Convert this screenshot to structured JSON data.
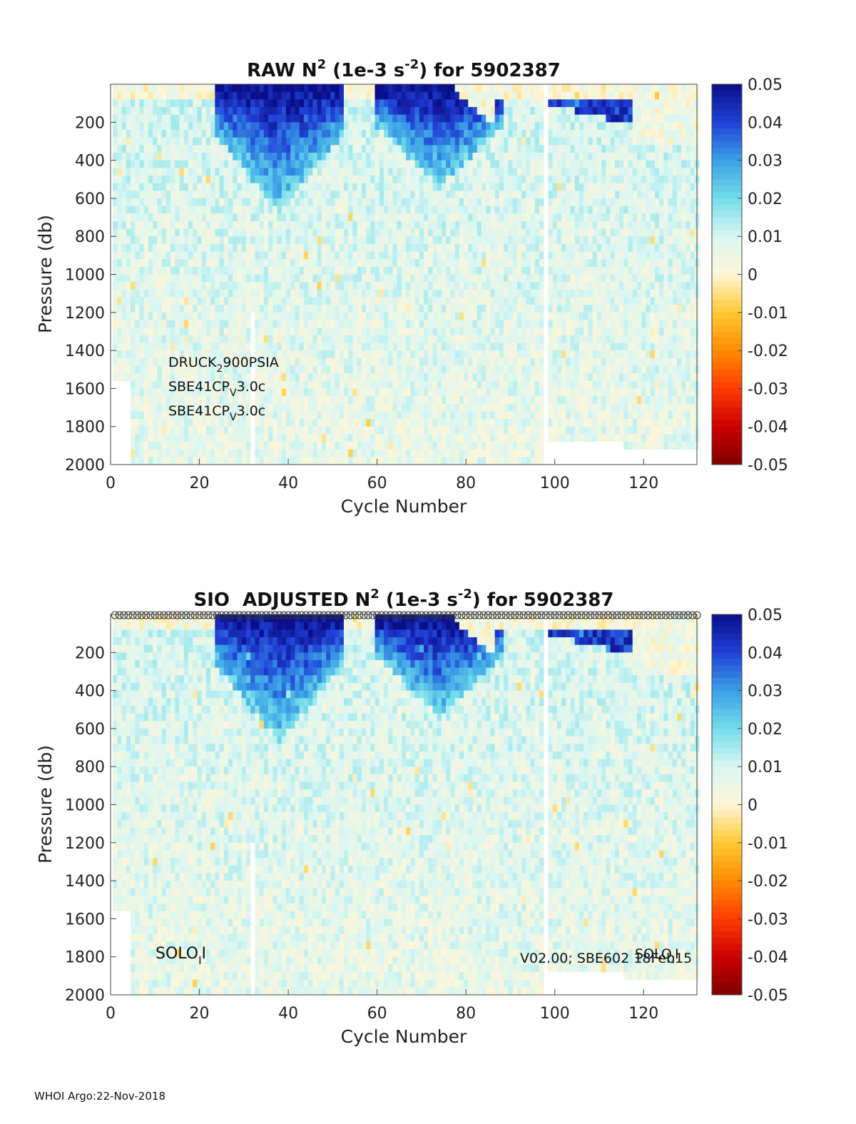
{
  "footer": "WHOI Argo:22-Nov-2018",
  "chart_data": [
    {
      "type": "heatmap",
      "title": {
        "pre": "RAW N",
        "sup1": "2",
        "mid": " (1e-3 s",
        "sup2": "-2",
        "post": ") for 5902387"
      },
      "xlabel": "Cycle Number",
      "ylabel": "Pressure (db)",
      "xlim": [
        0,
        132
      ],
      "ylim": [
        2000,
        0
      ],
      "x_ticks": [
        0,
        20,
        40,
        60,
        80,
        100,
        120
      ],
      "y_ticks": [
        200,
        400,
        600,
        800,
        1000,
        1200,
        1400,
        1600,
        1800,
        2000
      ],
      "colorbar": {
        "range": [
          -0.05,
          0.05
        ],
        "ticks": [
          0.05,
          0.04,
          0.03,
          0.02,
          0.01,
          0,
          -0.01,
          -0.02,
          -0.03,
          -0.04,
          -0.05
        ],
        "tick_labels": [
          "0.05",
          "0.04",
          "0.03",
          "0.02",
          "0.01",
          "0",
          "-0.01",
          "-0.02",
          "-0.03",
          "-0.04",
          "-0.05"
        ],
        "colormap": [
          "#7f0000",
          "#cc0000",
          "#ff3c00",
          "#ff8c00",
          "#ffc933",
          "#fff6d8",
          "#d9f6f2",
          "#72ddea",
          "#3aa0e6",
          "#2040d6",
          "#0a0e88"
        ]
      },
      "annotations": [
        {
          "base": "DRUCK",
          "sub": "2",
          "rest": "900PSIA"
        },
        {
          "base": "SBE41CP",
          "sub": "V",
          "rest": "3.0c"
        },
        {
          "base": "SBE41CP",
          "sub": "V",
          "rest": "3.0c"
        }
      ],
      "field_description": {
        "surface_strong_stratification_cycles": [
          [
            24,
            52
          ],
          [
            60,
            86
          ],
          [
            98,
            118
          ]
        ],
        "typical_deep_value": 0.01,
        "peak_value": 0.05,
        "gap_cycles": [
          32,
          98
        ]
      }
    },
    {
      "type": "heatmap",
      "title": {
        "pre": "SIO  ADJUSTED N",
        "sup1": "2",
        "mid": " (1e-3 s",
        "sup2": "-2",
        "post": ") for 5902387"
      },
      "xlabel": "Cycle Number",
      "ylabel": "Pressure (db)",
      "xlim": [
        0,
        132
      ],
      "ylim": [
        2000,
        0
      ],
      "x_ticks": [
        0,
        20,
        40,
        60,
        80,
        100,
        120
      ],
      "y_ticks": [
        200,
        400,
        600,
        800,
        1000,
        1200,
        1400,
        1600,
        1800,
        2000
      ],
      "colorbar": {
        "range": [
          -0.05,
          0.05
        ],
        "ticks": [
          0.05,
          0.04,
          0.03,
          0.02,
          0.01,
          0,
          -0.01,
          -0.02,
          -0.03,
          -0.04,
          -0.05
        ],
        "tick_labels": [
          "0.05",
          "0.04",
          "0.03",
          "0.02",
          "0.01",
          "0",
          "-0.01",
          "-0.02",
          "-0.03",
          "-0.04",
          "-0.05"
        ],
        "colormap": [
          "#7f0000",
          "#cc0000",
          "#ff3c00",
          "#ff8c00",
          "#ffc933",
          "#fff6d8",
          "#d9f6f2",
          "#72ddea",
          "#3aa0e6",
          "#2040d6",
          "#0a0e88"
        ]
      },
      "annotations": [
        {
          "base": "SOLO",
          "sub": "I",
          "rest": "I"
        },
        {
          "base": "SOLO",
          "sub": "I",
          "rest": "I"
        },
        {
          "base": "V02.00; SBE602 18Feb15",
          "sub": "",
          "rest": ""
        }
      ],
      "markers": {
        "shape": "circle",
        "cycle_start": 1,
        "cycle_end": 132,
        "pressure": 0
      },
      "field_description": {
        "surface_strong_stratification_cycles": [
          [
            24,
            52
          ],
          [
            60,
            86
          ],
          [
            98,
            118
          ]
        ],
        "typical_deep_value": 0.01,
        "peak_value": 0.05,
        "gap_cycles": [
          32,
          98
        ]
      }
    }
  ]
}
